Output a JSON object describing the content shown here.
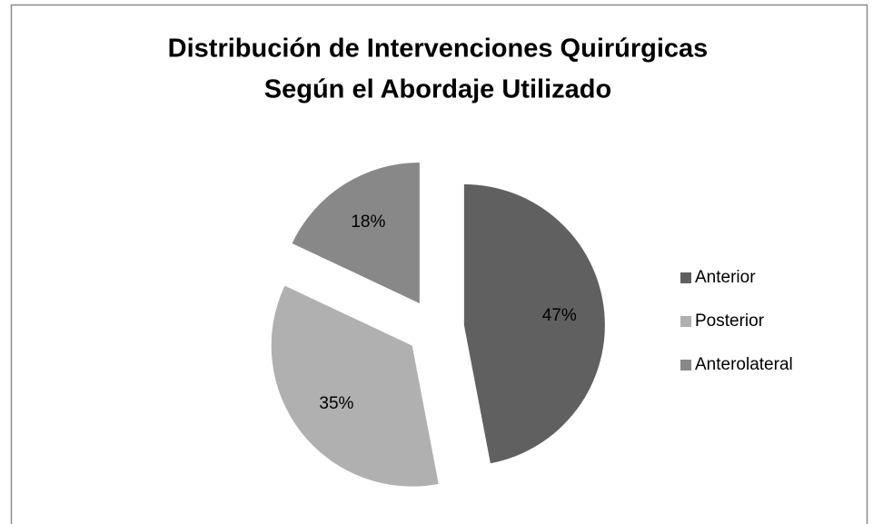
{
  "chart_data": {
    "type": "pie",
    "title": [
      "Distribución de Intervenciones Quirúrgicas",
      "Según el Abordaje Utilizado"
    ],
    "categories": [
      "Anterior",
      "Posterior",
      "Anterolateral"
    ],
    "values": [
      47,
      35,
      18
    ],
    "value_labels": [
      "47%",
      "35%",
      "18%"
    ],
    "colors": [
      "#606060",
      "#b0b0b0",
      "#888888"
    ],
    "exploded": true,
    "legend": "right"
  }
}
